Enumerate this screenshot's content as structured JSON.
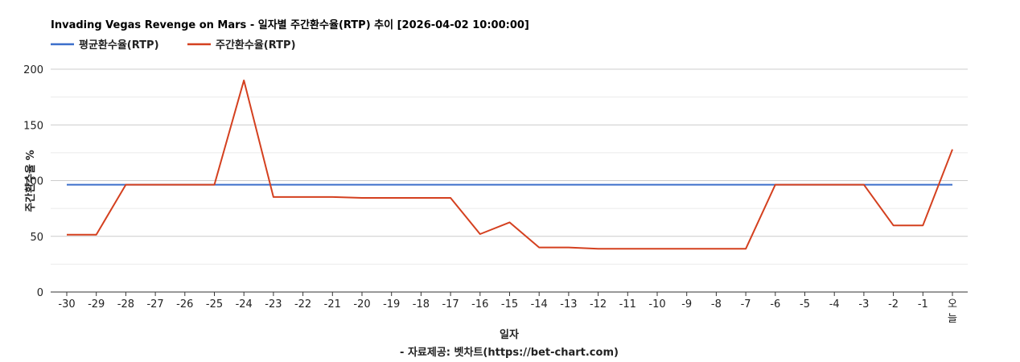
{
  "chart_data": {
    "type": "line",
    "title": "Invading Vegas Revenge on Mars - 일자별 주간환수율(RTP) 추이 [2026-04-02 10:00:00]",
    "xlabel": "일자",
    "ylabel": "주간환수율 %",
    "credit": "- 자료제공: 벳차트(https://bet-chart.com)",
    "categories": [
      "-30",
      "-29",
      "-28",
      "-27",
      "-26",
      "-25",
      "-24",
      "-23",
      "-22",
      "-21",
      "-20",
      "-19",
      "-18",
      "-17",
      "-16",
      "-15",
      "-14",
      "-13",
      "-12",
      "-11",
      "-10",
      "-9",
      "-8",
      "-7",
      "-6",
      "-5",
      "-4",
      "-3",
      "-2",
      "-1",
      "오늘"
    ],
    "ylim": [
      0,
      200
    ],
    "y_ticks": [
      0,
      50,
      100,
      150,
      200
    ],
    "y_tick_labels": [
      "0",
      "50",
      "100",
      "150",
      "200"
    ],
    "grid": true,
    "legend_position": "top-left",
    "series": [
      {
        "name": "평균환수율(RTP)",
        "color": "#3c6fcb",
        "values": [
          96.3,
          96.3,
          96.3,
          96.3,
          96.3,
          96.3,
          96.3,
          96.3,
          96.3,
          96.3,
          96.3,
          96.3,
          96.3,
          96.3,
          96.3,
          96.3,
          96.3,
          96.3,
          96.3,
          96.3,
          96.3,
          96.3,
          96.3,
          96.3,
          96.3,
          96.3,
          96.3,
          96.3,
          96.3,
          96.3,
          96.3
        ]
      },
      {
        "name": "주간환수율(RTP)",
        "color": "#d4401f",
        "values": [
          51.5,
          51.5,
          96.3,
          96.3,
          96.3,
          96.3,
          190,
          85.3,
          85.3,
          85.3,
          84.5,
          84.5,
          84.5,
          84.5,
          52,
          62.5,
          40,
          40,
          38.8,
          38.8,
          38.8,
          38.8,
          38.8,
          38.8,
          96.3,
          96.3,
          96.3,
          96.3,
          59.8,
          59.8,
          128
        ]
      }
    ]
  }
}
